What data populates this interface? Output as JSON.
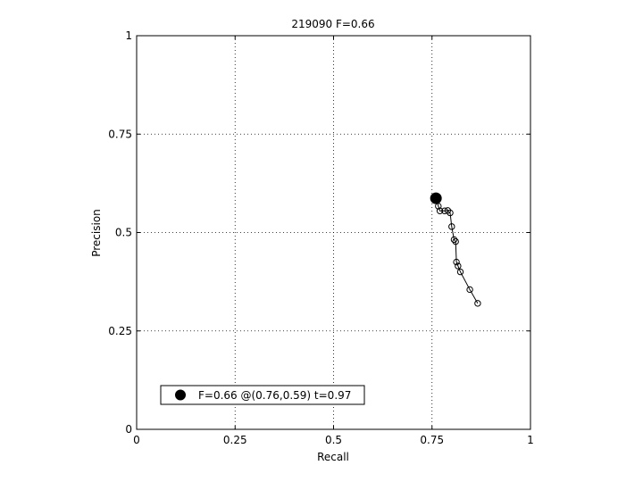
{
  "chart_data": {
    "type": "line",
    "title": "219090 F=0.66",
    "xlabel": "Recall",
    "ylabel": "Precision",
    "xlim": [
      0,
      1
    ],
    "ylim": [
      0,
      1
    ],
    "x_ticks": [
      0,
      0.25,
      0.5,
      0.75,
      1
    ],
    "y_ticks": [
      0,
      0.25,
      0.5,
      0.75,
      1
    ],
    "x_tick_labels": [
      "0",
      "0.25",
      "0.5",
      "0.75",
      "1"
    ],
    "y_tick_labels": [
      "0",
      "0.25",
      "0.5",
      "0.75",
      "1"
    ],
    "grid": true,
    "grid_style": "dotted",
    "legend_placement": "bottom-left",
    "series": [
      {
        "marker": "open-circle",
        "color": "#000000",
        "x": [
          0.762,
          0.766,
          0.77,
          0.782,
          0.79,
          0.796,
          0.8,
          0.806,
          0.81,
          0.812,
          0.816,
          0.822,
          0.846,
          0.866
        ],
        "y": [
          0.583,
          0.567,
          0.555,
          0.555,
          0.556,
          0.55,
          0.515,
          0.482,
          0.477,
          0.425,
          0.415,
          0.4,
          0.355,
          0.32
        ]
      }
    ],
    "best_point": {
      "label": "F=0.66 @(0.76,0.59) t=0.97",
      "x": 0.76,
      "y": 0.587,
      "marker": "filled-circle",
      "color": "#000000"
    }
  }
}
